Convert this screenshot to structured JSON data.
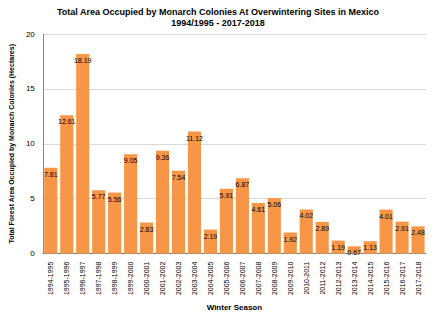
{
  "chart_data": {
    "type": "bar",
    "title": "Total Area Occupied by Monarch Colonies At Overwintering Sites in Mexico",
    "subtitle": "1994/1995 - 2017-2018",
    "x_label": "Winter Season",
    "y_label": "Total Forest Area Occupied by Monarch Colonies (Hectares)",
    "categories": [
      "1994-1995",
      "1995-1996",
      "1996-1997",
      "1997-1998",
      "1998-1999",
      "1999-2000",
      "2000-2001",
      "2001-2002",
      "2002-2003",
      "2003-2004",
      "2004-2005",
      "2005-2006",
      "2006-2007",
      "2007-2008",
      "2008-2009",
      "2009-2010",
      "2010-2011",
      "2011-2012",
      "2012-2013",
      "2013-2014",
      "2014-2015",
      "2015-2016",
      "2016-2017",
      "2017-2018"
    ],
    "values": [
      7.81,
      12.61,
      18.19,
      5.77,
      5.56,
      9.05,
      2.83,
      9.36,
      7.54,
      11.12,
      2.19,
      5.91,
      6.87,
      4.61,
      5.06,
      1.92,
      4.02,
      2.89,
      1.19,
      0.67,
      1.13,
      4.01,
      2.91,
      2.48
    ],
    "color": "#f79646",
    "ylim": [
      0,
      20
    ],
    "yticks": [
      0,
      5,
      10,
      15,
      20
    ],
    "grid": true,
    "data_labels": true
  }
}
